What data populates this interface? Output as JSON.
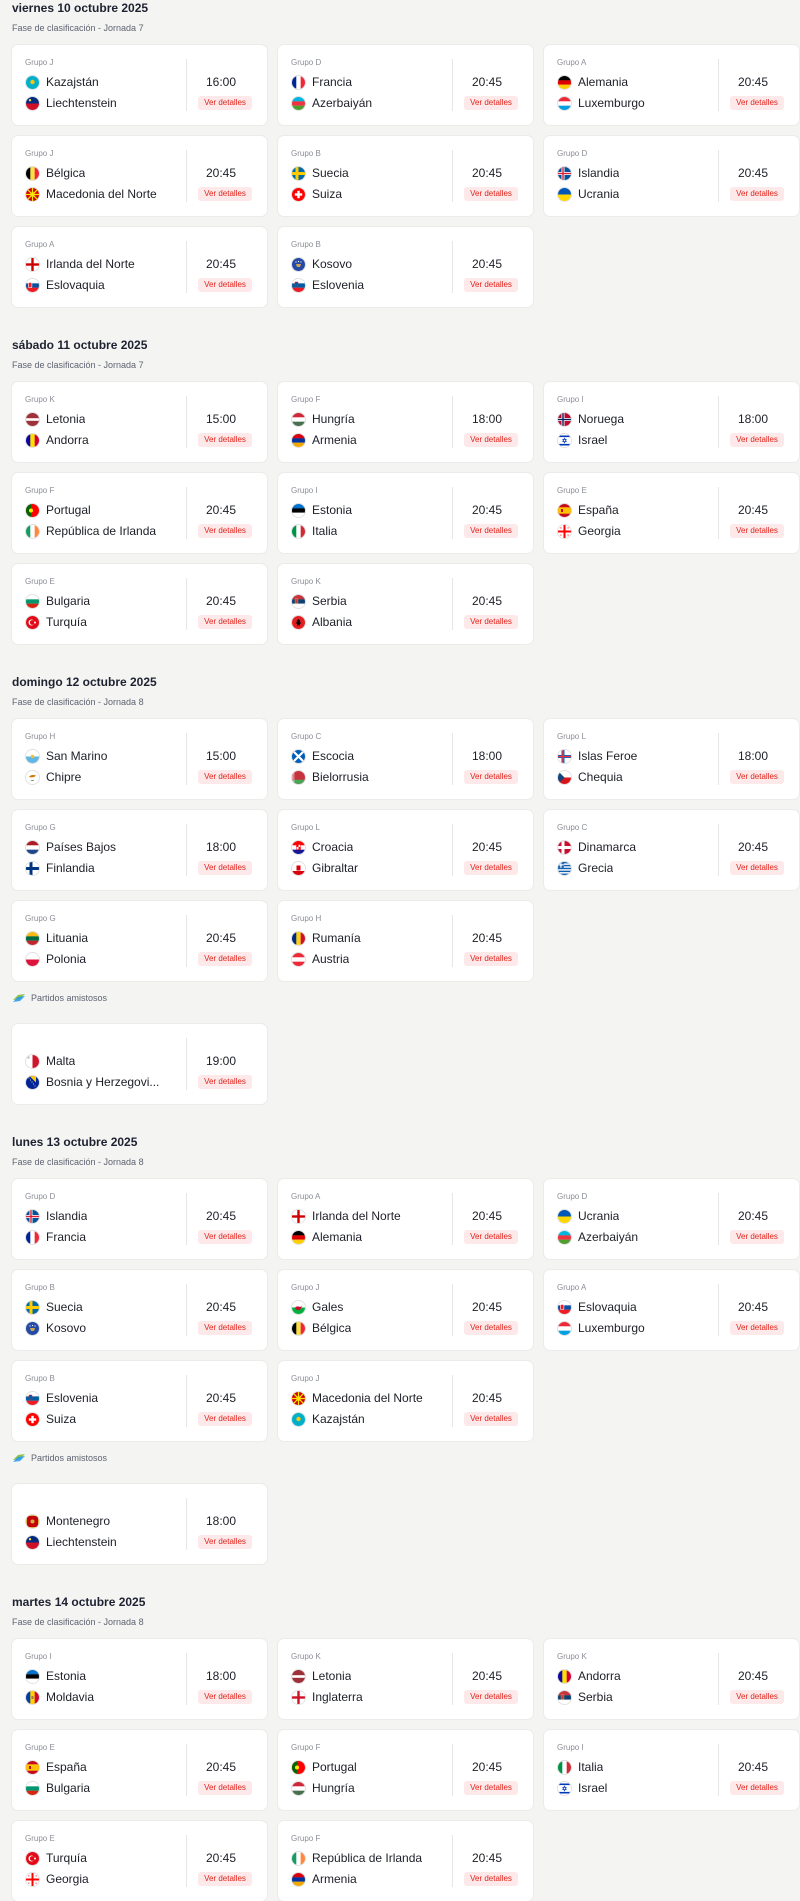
{
  "details_label": "Ver detalles",
  "days": [
    {
      "title": "viernes 10 octubre 2025",
      "phase": "Fase de clasificación - Jornada 7",
      "matches": [
        {
          "group": "Grupo J",
          "home": "Kazajstán",
          "away": "Liechtenstein",
          "time": "16:00",
          "home_flag": "kazakhstan-flag-icon",
          "away_flag": "liechtenstein-flag-icon"
        },
        {
          "group": "Grupo D",
          "home": "Francia",
          "away": "Azerbaiyán",
          "time": "20:45",
          "home_flag": "france-flag-icon",
          "away_flag": "azerbaijan-flag-icon"
        },
        {
          "group": "Grupo A",
          "home": "Alemania",
          "away": "Luxemburgo",
          "time": "20:45",
          "home_flag": "germany-flag-icon",
          "away_flag": "luxembourg-flag-icon"
        },
        {
          "group": "Grupo J",
          "home": "Bélgica",
          "away": "Macedonia del Norte",
          "time": "20:45",
          "home_flag": "belgium-flag-icon",
          "away_flag": "north-macedonia-flag-icon"
        },
        {
          "group": "Grupo B",
          "home": "Suecia",
          "away": "Suiza",
          "time": "20:45",
          "home_flag": "sweden-flag-icon",
          "away_flag": "switzerland-flag-icon"
        },
        {
          "group": "Grupo D",
          "home": "Islandia",
          "away": "Ucrania",
          "time": "20:45",
          "home_flag": "iceland-flag-icon",
          "away_flag": "ukraine-flag-icon"
        },
        {
          "group": "Grupo A",
          "home": "Irlanda del Norte",
          "away": "Eslovaquia",
          "time": "20:45",
          "home_flag": "northern-ireland-flag-icon",
          "away_flag": "slovakia-flag-icon"
        },
        {
          "group": "Grupo B",
          "home": "Kosovo",
          "away": "Eslovenia",
          "time": "20:45",
          "home_flag": "kosovo-flag-icon",
          "away_flag": "slovenia-flag-icon"
        }
      ]
    },
    {
      "title": "sábado 11 octubre 2025",
      "phase": "Fase de clasificación - Jornada 7",
      "matches": [
        {
          "group": "Grupo K",
          "home": "Letonia",
          "away": "Andorra",
          "time": "15:00",
          "home_flag": "latvia-flag-icon",
          "away_flag": "andorra-flag-icon"
        },
        {
          "group": "Grupo F",
          "home": "Hungría",
          "away": "Armenia",
          "time": "18:00",
          "home_flag": "hungary-flag-icon",
          "away_flag": "armenia-flag-icon"
        },
        {
          "group": "Grupo I",
          "home": "Noruega",
          "away": "Israel",
          "time": "18:00",
          "home_flag": "norway-flag-icon",
          "away_flag": "israel-flag-icon"
        },
        {
          "group": "Grupo F",
          "home": "Portugal",
          "away": "República de Irlanda",
          "time": "20:45",
          "home_flag": "portugal-flag-icon",
          "away_flag": "ireland-flag-icon"
        },
        {
          "group": "Grupo I",
          "home": "Estonia",
          "away": "Italia",
          "time": "20:45",
          "home_flag": "estonia-flag-icon",
          "away_flag": "italy-flag-icon"
        },
        {
          "group": "Grupo E",
          "home": "España",
          "away": "Georgia",
          "time": "20:45",
          "home_flag": "spain-flag-icon",
          "away_flag": "georgia-flag-icon"
        },
        {
          "group": "Grupo E",
          "home": "Bulgaria",
          "away": "Turquía",
          "time": "20:45",
          "home_flag": "bulgaria-flag-icon",
          "away_flag": "turkey-flag-icon"
        },
        {
          "group": "Grupo K",
          "home": "Serbia",
          "away": "Albania",
          "time": "20:45",
          "home_flag": "serbia-flag-icon",
          "away_flag": "albania-flag-icon"
        }
      ]
    },
    {
      "title": "domingo 12 octubre 2025",
      "phase": "Fase de clasificación - Jornada 8",
      "matches": [
        {
          "group": "Grupo H",
          "home": "San Marino",
          "away": "Chipre",
          "time": "15:00",
          "home_flag": "san-marino-flag-icon",
          "away_flag": "cyprus-flag-icon"
        },
        {
          "group": "Grupo C",
          "home": "Escocia",
          "away": "Bielorrusia",
          "time": "18:00",
          "home_flag": "scotland-flag-icon",
          "away_flag": "belarus-flag-icon"
        },
        {
          "group": "Grupo L",
          "home": "Islas Feroe",
          "away": "Chequia",
          "time": "18:00",
          "home_flag": "faroe-islands-flag-icon",
          "away_flag": "czechia-flag-icon"
        },
        {
          "group": "Grupo G",
          "home": "Países Bajos",
          "away": "Finlandia",
          "time": "18:00",
          "home_flag": "netherlands-flag-icon",
          "away_flag": "finland-flag-icon"
        },
        {
          "group": "Grupo L",
          "home": "Croacia",
          "away": "Gibraltar",
          "time": "20:45",
          "home_flag": "croatia-flag-icon",
          "away_flag": "gibraltar-flag-icon"
        },
        {
          "group": "Grupo C",
          "home": "Dinamarca",
          "away": "Grecia",
          "time": "20:45",
          "home_flag": "denmark-flag-icon",
          "away_flag": "greece-flag-icon"
        },
        {
          "group": "Grupo G",
          "home": "Lituania",
          "away": "Polonia",
          "time": "20:45",
          "home_flag": "lithuania-flag-icon",
          "away_flag": "poland-flag-icon"
        },
        {
          "group": "Grupo H",
          "home": "Rumanía",
          "away": "Austria",
          "time": "20:45",
          "home_flag": "romania-flag-icon",
          "away_flag": "austria-flag-icon"
        }
      ],
      "friendlies_label": "Partidos amistosos",
      "friendlies": [
        {
          "group": "",
          "home": "Malta",
          "away": "Bosnia y Herzegovi...",
          "time": "19:00",
          "home_flag": "malta-flag-icon",
          "away_flag": "bosnia-flag-icon"
        }
      ]
    },
    {
      "title": "lunes 13 octubre 2025",
      "phase": "Fase de clasificación - Jornada 8",
      "matches": [
        {
          "group": "Grupo D",
          "home": "Islandia",
          "away": "Francia",
          "time": "20:45",
          "home_flag": "iceland-flag-icon",
          "away_flag": "france-flag-icon"
        },
        {
          "group": "Grupo A",
          "home": "Irlanda del Norte",
          "away": "Alemania",
          "time": "20:45",
          "home_flag": "northern-ireland-flag-icon",
          "away_flag": "germany-flag-icon"
        },
        {
          "group": "Grupo D",
          "home": "Ucrania",
          "away": "Azerbaiyán",
          "time": "20:45",
          "home_flag": "ukraine-flag-icon",
          "away_flag": "azerbaijan-flag-icon"
        },
        {
          "group": "Grupo B",
          "home": "Suecia",
          "away": "Kosovo",
          "time": "20:45",
          "home_flag": "sweden-flag-icon",
          "away_flag": "kosovo-flag-icon"
        },
        {
          "group": "Grupo J",
          "home": "Gales",
          "away": "Bélgica",
          "time": "20:45",
          "home_flag": "wales-flag-icon",
          "away_flag": "belgium-flag-icon"
        },
        {
          "group": "Grupo A",
          "home": "Eslovaquia",
          "away": "Luxemburgo",
          "time": "20:45",
          "home_flag": "slovakia-flag-icon",
          "away_flag": "luxembourg-flag-icon"
        },
        {
          "group": "Grupo B",
          "home": "Eslovenia",
          "away": "Suiza",
          "time": "20:45",
          "home_flag": "slovenia-flag-icon",
          "away_flag": "switzerland-flag-icon"
        },
        {
          "group": "Grupo J",
          "home": "Macedonia del Norte",
          "away": "Kazajstán",
          "time": "20:45",
          "home_flag": "north-macedonia-flag-icon",
          "away_flag": "kazakhstan-flag-icon"
        }
      ],
      "friendlies_label": "Partidos amistosos",
      "friendlies": [
        {
          "group": "",
          "home": "Montenegro",
          "away": "Liechtenstein",
          "time": "18:00",
          "home_flag": "montenegro-flag-icon",
          "away_flag": "liechtenstein-flag-icon"
        }
      ]
    },
    {
      "title": "martes 14 octubre 2025",
      "phase": "Fase de clasificación - Jornada 8",
      "matches": [
        {
          "group": "Grupo I",
          "home": "Estonia",
          "away": "Moldavia",
          "time": "18:00",
          "home_flag": "estonia-flag-icon",
          "away_flag": "moldova-flag-icon"
        },
        {
          "group": "Grupo K",
          "home": "Letonia",
          "away": "Inglaterra",
          "time": "20:45",
          "home_flag": "latvia-flag-icon",
          "away_flag": "england-flag-icon"
        },
        {
          "group": "Grupo K",
          "home": "Andorra",
          "away": "Serbia",
          "time": "20:45",
          "home_flag": "andorra-flag-icon",
          "away_flag": "serbia-flag-icon"
        },
        {
          "group": "Grupo E",
          "home": "España",
          "away": "Bulgaria",
          "time": "20:45",
          "home_flag": "spain-flag-icon",
          "away_flag": "bulgaria-flag-icon"
        },
        {
          "group": "Grupo F",
          "home": "Portugal",
          "away": "Hungría",
          "time": "20:45",
          "home_flag": "portugal-flag-icon",
          "away_flag": "hungary-flag-icon"
        },
        {
          "group": "Grupo I",
          "home": "Italia",
          "away": "Israel",
          "time": "20:45",
          "home_flag": "italy-flag-icon",
          "away_flag": "israel-flag-icon"
        },
        {
          "group": "Grupo E",
          "home": "Turquía",
          "away": "Georgia",
          "time": "20:45",
          "home_flag": "turkey-flag-icon",
          "away_flag": "georgia-flag-icon"
        },
        {
          "group": "Grupo F",
          "home": "República de Irlanda",
          "away": "Armenia",
          "time": "20:45",
          "home_flag": "ireland-flag-icon",
          "away_flag": "armenia-flag-icon"
        }
      ]
    }
  ]
}
